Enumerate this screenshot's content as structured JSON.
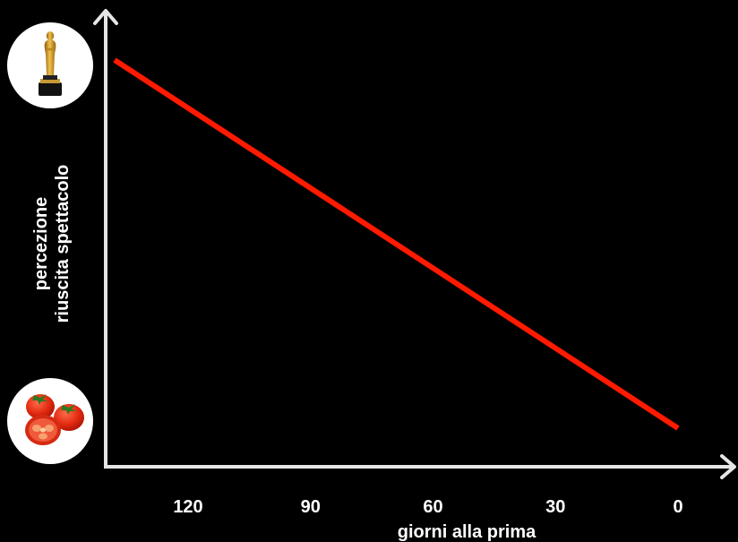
{
  "chart_data": {
    "type": "line",
    "xlabel": "giorni alla prima",
    "ylabel_lines": [
      "percezione",
      "riuscita spettacolo"
    ],
    "x_ticks": [
      120,
      90,
      60,
      30,
      0
    ],
    "x_reversed": true,
    "series": [
      {
        "x": [
          138,
          0
        ],
        "y": [
          1,
          0
        ]
      }
    ],
    "y_axis_images": {
      "top": "oscar-statuette",
      "bottom": "tomatoes"
    },
    "colors": {
      "line": "#ff1a00",
      "axis": "#e6e6e6",
      "text": "#ffffff",
      "background": "#000000"
    },
    "grid": false
  }
}
